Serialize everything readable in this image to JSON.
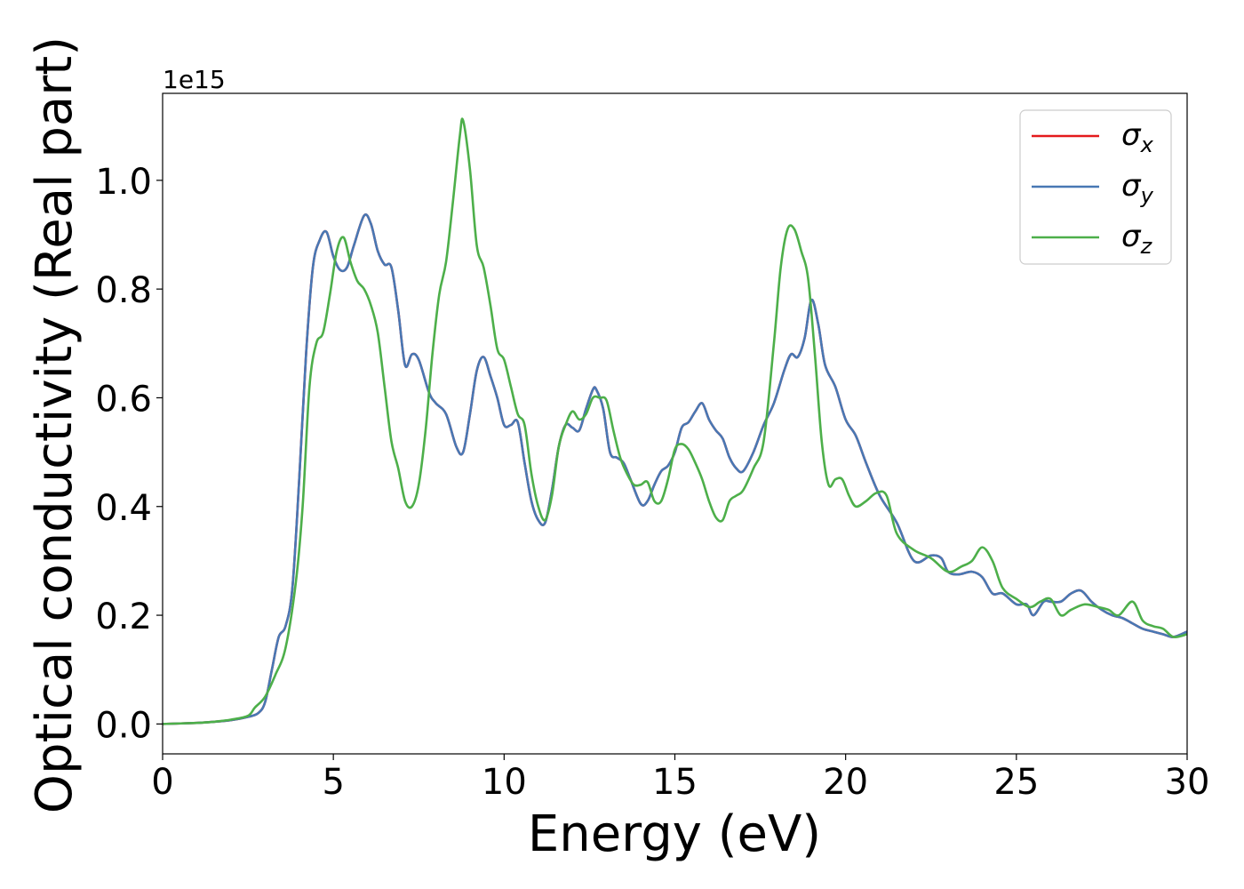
{
  "chart_data": {
    "type": "line",
    "xlabel": "Energy (eV)",
    "ylabel": "Optical conductivity (Real part)",
    "y_offset_label": "1e15",
    "xlim": [
      0,
      30
    ],
    "ylim": [
      -0.055,
      1.16
    ],
    "xticks": [
      0,
      5,
      10,
      15,
      20,
      25,
      30
    ],
    "xtick_labels": [
      "0",
      "5",
      "10",
      "15",
      "20",
      "25",
      "30"
    ],
    "yticks": [
      0.0,
      0.2,
      0.4,
      0.6,
      0.8,
      1.0
    ],
    "ytick_labels": [
      "0.0",
      "0.2",
      "0.4",
      "0.6",
      "0.8",
      "1.0"
    ],
    "grid": false,
    "legend_position": "top-right",
    "series": [
      {
        "name": "σx",
        "name_base": "σ",
        "name_sub": "x",
        "color": "#e41a1c",
        "x": [
          0,
          1,
          1.5,
          2,
          2.5,
          2.8,
          3.0,
          3.2,
          3.4,
          3.6,
          3.8,
          4.0,
          4.2,
          4.4,
          4.6,
          4.8,
          5.0,
          5.2,
          5.4,
          5.6,
          5.9,
          6.1,
          6.3,
          6.5,
          6.7,
          6.9,
          7.1,
          7.3,
          7.5,
          7.8,
          8.0,
          8.3,
          8.6,
          8.8,
          9.0,
          9.2,
          9.4,
          9.6,
          9.8,
          10.0,
          10.2,
          10.4,
          10.6,
          10.8,
          11.0,
          11.2,
          11.4,
          11.6,
          11.8,
          12.0,
          12.2,
          12.4,
          12.6,
          12.7,
          12.9,
          13.1,
          13.3,
          13.5,
          13.7,
          14.0,
          14.2,
          14.4,
          14.6,
          14.8,
          15.0,
          15.2,
          15.4,
          15.6,
          15.8,
          16.0,
          16.2,
          16.4,
          16.6,
          16.8,
          17.0,
          17.3,
          17.6,
          17.9,
          18.2,
          18.4,
          18.6,
          18.8,
          19.0,
          19.2,
          19.4,
          19.7,
          20.0,
          20.3,
          20.6,
          21.0,
          21.5,
          22.0,
          22.5,
          22.8,
          23.0,
          23.3,
          23.7,
          24.0,
          24.3,
          24.6,
          25.0,
          25.3,
          25.5,
          25.8,
          26.0,
          26.3,
          26.6,
          26.9,
          27.2,
          27.5,
          27.8,
          28.1,
          28.4,
          28.7,
          29.0,
          29.3,
          29.6,
          30.0
        ],
        "y": [
          0.0,
          0.002,
          0.004,
          0.007,
          0.013,
          0.02,
          0.04,
          0.1,
          0.16,
          0.18,
          0.25,
          0.45,
          0.68,
          0.84,
          0.89,
          0.905,
          0.86,
          0.835,
          0.84,
          0.88,
          0.935,
          0.92,
          0.87,
          0.845,
          0.84,
          0.76,
          0.66,
          0.68,
          0.67,
          0.61,
          0.59,
          0.57,
          0.51,
          0.5,
          0.57,
          0.65,
          0.675,
          0.64,
          0.6,
          0.55,
          0.55,
          0.555,
          0.48,
          0.41,
          0.375,
          0.37,
          0.43,
          0.51,
          0.55,
          0.545,
          0.54,
          0.58,
          0.615,
          0.615,
          0.58,
          0.5,
          0.49,
          0.48,
          0.45,
          0.405,
          0.41,
          0.44,
          0.465,
          0.475,
          0.5,
          0.545,
          0.555,
          0.575,
          0.59,
          0.56,
          0.54,
          0.525,
          0.49,
          0.47,
          0.465,
          0.5,
          0.55,
          0.59,
          0.65,
          0.68,
          0.675,
          0.71,
          0.78,
          0.735,
          0.66,
          0.62,
          0.56,
          0.53,
          0.48,
          0.42,
          0.37,
          0.3,
          0.31,
          0.305,
          0.28,
          0.275,
          0.28,
          0.27,
          0.24,
          0.24,
          0.22,
          0.22,
          0.2,
          0.225,
          0.225,
          0.225,
          0.24,
          0.245,
          0.225,
          0.21,
          0.2,
          0.195,
          0.185,
          0.175,
          0.17,
          0.165,
          0.16,
          0.17
        ]
      },
      {
        "name": "σy",
        "name_base": "σ",
        "name_sub": "y",
        "color": "#4878b4",
        "x": [
          0,
          1,
          1.5,
          2,
          2.5,
          2.8,
          3.0,
          3.2,
          3.4,
          3.6,
          3.8,
          4.0,
          4.2,
          4.4,
          4.6,
          4.8,
          5.0,
          5.2,
          5.4,
          5.6,
          5.9,
          6.1,
          6.3,
          6.5,
          6.7,
          6.9,
          7.1,
          7.3,
          7.5,
          7.8,
          8.0,
          8.3,
          8.6,
          8.8,
          9.0,
          9.2,
          9.4,
          9.6,
          9.8,
          10.0,
          10.2,
          10.4,
          10.6,
          10.8,
          11.0,
          11.2,
          11.4,
          11.6,
          11.8,
          12.0,
          12.2,
          12.4,
          12.6,
          12.7,
          12.9,
          13.1,
          13.3,
          13.5,
          13.7,
          14.0,
          14.2,
          14.4,
          14.6,
          14.8,
          15.0,
          15.2,
          15.4,
          15.6,
          15.8,
          16.0,
          16.2,
          16.4,
          16.6,
          16.8,
          17.0,
          17.3,
          17.6,
          17.9,
          18.2,
          18.4,
          18.6,
          18.8,
          19.0,
          19.2,
          19.4,
          19.7,
          20.0,
          20.3,
          20.6,
          21.0,
          21.5,
          22.0,
          22.5,
          22.8,
          23.0,
          23.3,
          23.7,
          24.0,
          24.3,
          24.6,
          25.0,
          25.3,
          25.5,
          25.8,
          26.0,
          26.3,
          26.6,
          26.9,
          27.2,
          27.5,
          27.8,
          28.1,
          28.4,
          28.7,
          29.0,
          29.3,
          29.6,
          30.0
        ],
        "y": [
          0.0,
          0.002,
          0.004,
          0.007,
          0.013,
          0.02,
          0.04,
          0.1,
          0.16,
          0.18,
          0.25,
          0.45,
          0.68,
          0.84,
          0.89,
          0.905,
          0.86,
          0.835,
          0.84,
          0.88,
          0.935,
          0.92,
          0.87,
          0.845,
          0.84,
          0.76,
          0.66,
          0.68,
          0.67,
          0.61,
          0.59,
          0.57,
          0.51,
          0.5,
          0.57,
          0.65,
          0.675,
          0.64,
          0.6,
          0.55,
          0.55,
          0.555,
          0.48,
          0.41,
          0.375,
          0.37,
          0.43,
          0.51,
          0.55,
          0.545,
          0.54,
          0.58,
          0.615,
          0.615,
          0.58,
          0.5,
          0.49,
          0.48,
          0.45,
          0.405,
          0.41,
          0.44,
          0.465,
          0.475,
          0.5,
          0.545,
          0.555,
          0.575,
          0.59,
          0.56,
          0.54,
          0.525,
          0.49,
          0.47,
          0.465,
          0.5,
          0.55,
          0.59,
          0.65,
          0.68,
          0.675,
          0.71,
          0.78,
          0.735,
          0.66,
          0.62,
          0.56,
          0.53,
          0.48,
          0.42,
          0.37,
          0.3,
          0.31,
          0.305,
          0.28,
          0.275,
          0.28,
          0.27,
          0.24,
          0.24,
          0.22,
          0.22,
          0.2,
          0.225,
          0.225,
          0.225,
          0.24,
          0.245,
          0.225,
          0.21,
          0.2,
          0.195,
          0.185,
          0.175,
          0.17,
          0.165,
          0.16,
          0.17
        ]
      },
      {
        "name": "σz",
        "name_base": "σ",
        "name_sub": "z",
        "color": "#4daf4a",
        "x": [
          0,
          1,
          1.5,
          2,
          2.5,
          2.7,
          3.0,
          3.3,
          3.6,
          3.9,
          4.1,
          4.3,
          4.5,
          4.7,
          4.9,
          5.1,
          5.3,
          5.5,
          5.7,
          5.9,
          6.1,
          6.3,
          6.5,
          6.7,
          6.9,
          7.1,
          7.3,
          7.5,
          7.7,
          7.9,
          8.1,
          8.3,
          8.5,
          8.7,
          8.8,
          9.0,
          9.2,
          9.4,
          9.6,
          9.8,
          10.0,
          10.2,
          10.4,
          10.6,
          10.8,
          11.0,
          11.2,
          11.4,
          11.6,
          11.8,
          12.0,
          12.2,
          12.4,
          12.6,
          12.8,
          13.0,
          13.2,
          13.4,
          13.6,
          13.8,
          14.0,
          14.2,
          14.4,
          14.6,
          14.8,
          15.0,
          15.2,
          15.4,
          15.6,
          15.8,
          16.0,
          16.2,
          16.4,
          16.6,
          16.8,
          17.0,
          17.3,
          17.6,
          17.9,
          18.1,
          18.3,
          18.5,
          18.7,
          18.9,
          19.1,
          19.3,
          19.5,
          19.7,
          19.9,
          20.1,
          20.3,
          20.6,
          20.9,
          21.2,
          21.5,
          22.0,
          22.5,
          23.0,
          23.4,
          23.7,
          24.0,
          24.3,
          24.6,
          25.0,
          25.4,
          25.7,
          26.0,
          26.3,
          26.6,
          27.0,
          27.4,
          27.7,
          28.0,
          28.4,
          28.7,
          29.0,
          29.3,
          29.6,
          30.0
        ],
        "y": [
          0.0,
          0.002,
          0.004,
          0.008,
          0.015,
          0.03,
          0.05,
          0.09,
          0.14,
          0.26,
          0.4,
          0.62,
          0.7,
          0.72,
          0.79,
          0.87,
          0.895,
          0.85,
          0.815,
          0.8,
          0.77,
          0.72,
          0.62,
          0.52,
          0.47,
          0.41,
          0.4,
          0.44,
          0.54,
          0.68,
          0.79,
          0.85,
          0.96,
          1.08,
          1.11,
          1.02,
          0.88,
          0.84,
          0.77,
          0.69,
          0.67,
          0.62,
          0.57,
          0.55,
          0.46,
          0.4,
          0.375,
          0.42,
          0.51,
          0.55,
          0.575,
          0.56,
          0.57,
          0.6,
          0.6,
          0.595,
          0.54,
          0.49,
          0.46,
          0.44,
          0.44,
          0.445,
          0.41,
          0.41,
          0.45,
          0.505,
          0.515,
          0.505,
          0.48,
          0.45,
          0.41,
          0.38,
          0.375,
          0.41,
          0.42,
          0.43,
          0.47,
          0.52,
          0.7,
          0.84,
          0.91,
          0.91,
          0.87,
          0.82,
          0.68,
          0.52,
          0.44,
          0.45,
          0.45,
          0.42,
          0.4,
          0.41,
          0.425,
          0.42,
          0.35,
          0.32,
          0.305,
          0.28,
          0.29,
          0.3,
          0.325,
          0.3,
          0.25,
          0.23,
          0.215,
          0.225,
          0.23,
          0.2,
          0.21,
          0.22,
          0.215,
          0.21,
          0.2,
          0.225,
          0.19,
          0.18,
          0.175,
          0.16,
          0.165
        ]
      }
    ]
  }
}
